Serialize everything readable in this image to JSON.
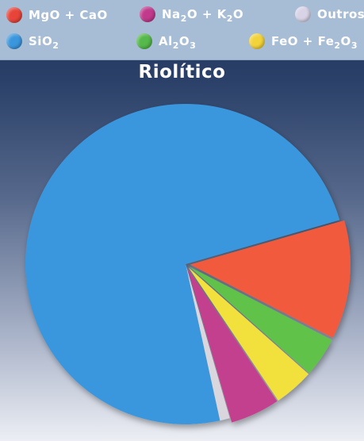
{
  "chart_data": {
    "type": "pie",
    "title": "Riolítico",
    "legend_placement": "top",
    "legend": [
      {
        "key": "mgo_cao",
        "label_parts": [
          [
            "MgO + CaO",
            ""
          ]
        ],
        "color": "#e8443a"
      },
      {
        "key": "na2o_k2o",
        "label_parts": [
          [
            "Na",
            ""
          ],
          [
            "2",
            "sub"
          ],
          [
            "O + K",
            ""
          ],
          [
            "2",
            "sub"
          ],
          [
            "O",
            ""
          ]
        ],
        "color": "#c13a8c"
      },
      {
        "key": "outros",
        "label_parts": [
          [
            "Outros",
            ""
          ]
        ],
        "color": "#d8d3e6"
      },
      {
        "key": "sio2",
        "label_parts": [
          [
            "SiO",
            ""
          ],
          [
            "2",
            "sub"
          ]
        ],
        "color": "#3b97dd"
      },
      {
        "key": "al2o3",
        "label_parts": [
          [
            "Al",
            ""
          ],
          [
            "2",
            "sub"
          ],
          [
            "O",
            ""
          ],
          [
            "3",
            "sub"
          ]
        ],
        "color": "#55b94b"
      },
      {
        "key": "feo_fe2o3",
        "label_parts": [
          [
            "FeO + Fe",
            ""
          ],
          [
            "2",
            "sub"
          ],
          [
            "O",
            ""
          ],
          [
            "3",
            "sub"
          ]
        ],
        "color": "#f3d33a"
      }
    ],
    "slices": [
      {
        "key": "sio2",
        "value": 74,
        "color": "#3b97dd"
      },
      {
        "key": "mgo_cao",
        "value": 12,
        "color": "#f15a3d"
      },
      {
        "key": "al2o3",
        "value": 4,
        "color": "#60c24a"
      },
      {
        "key": "feo_fe2o3",
        "value": 4,
        "color": "#f2e03c"
      },
      {
        "key": "na2o_k2o",
        "value": 5,
        "color": "#c3408f"
      },
      {
        "key": "outros",
        "value": 1,
        "color": "#d9d6de"
      }
    ]
  }
}
